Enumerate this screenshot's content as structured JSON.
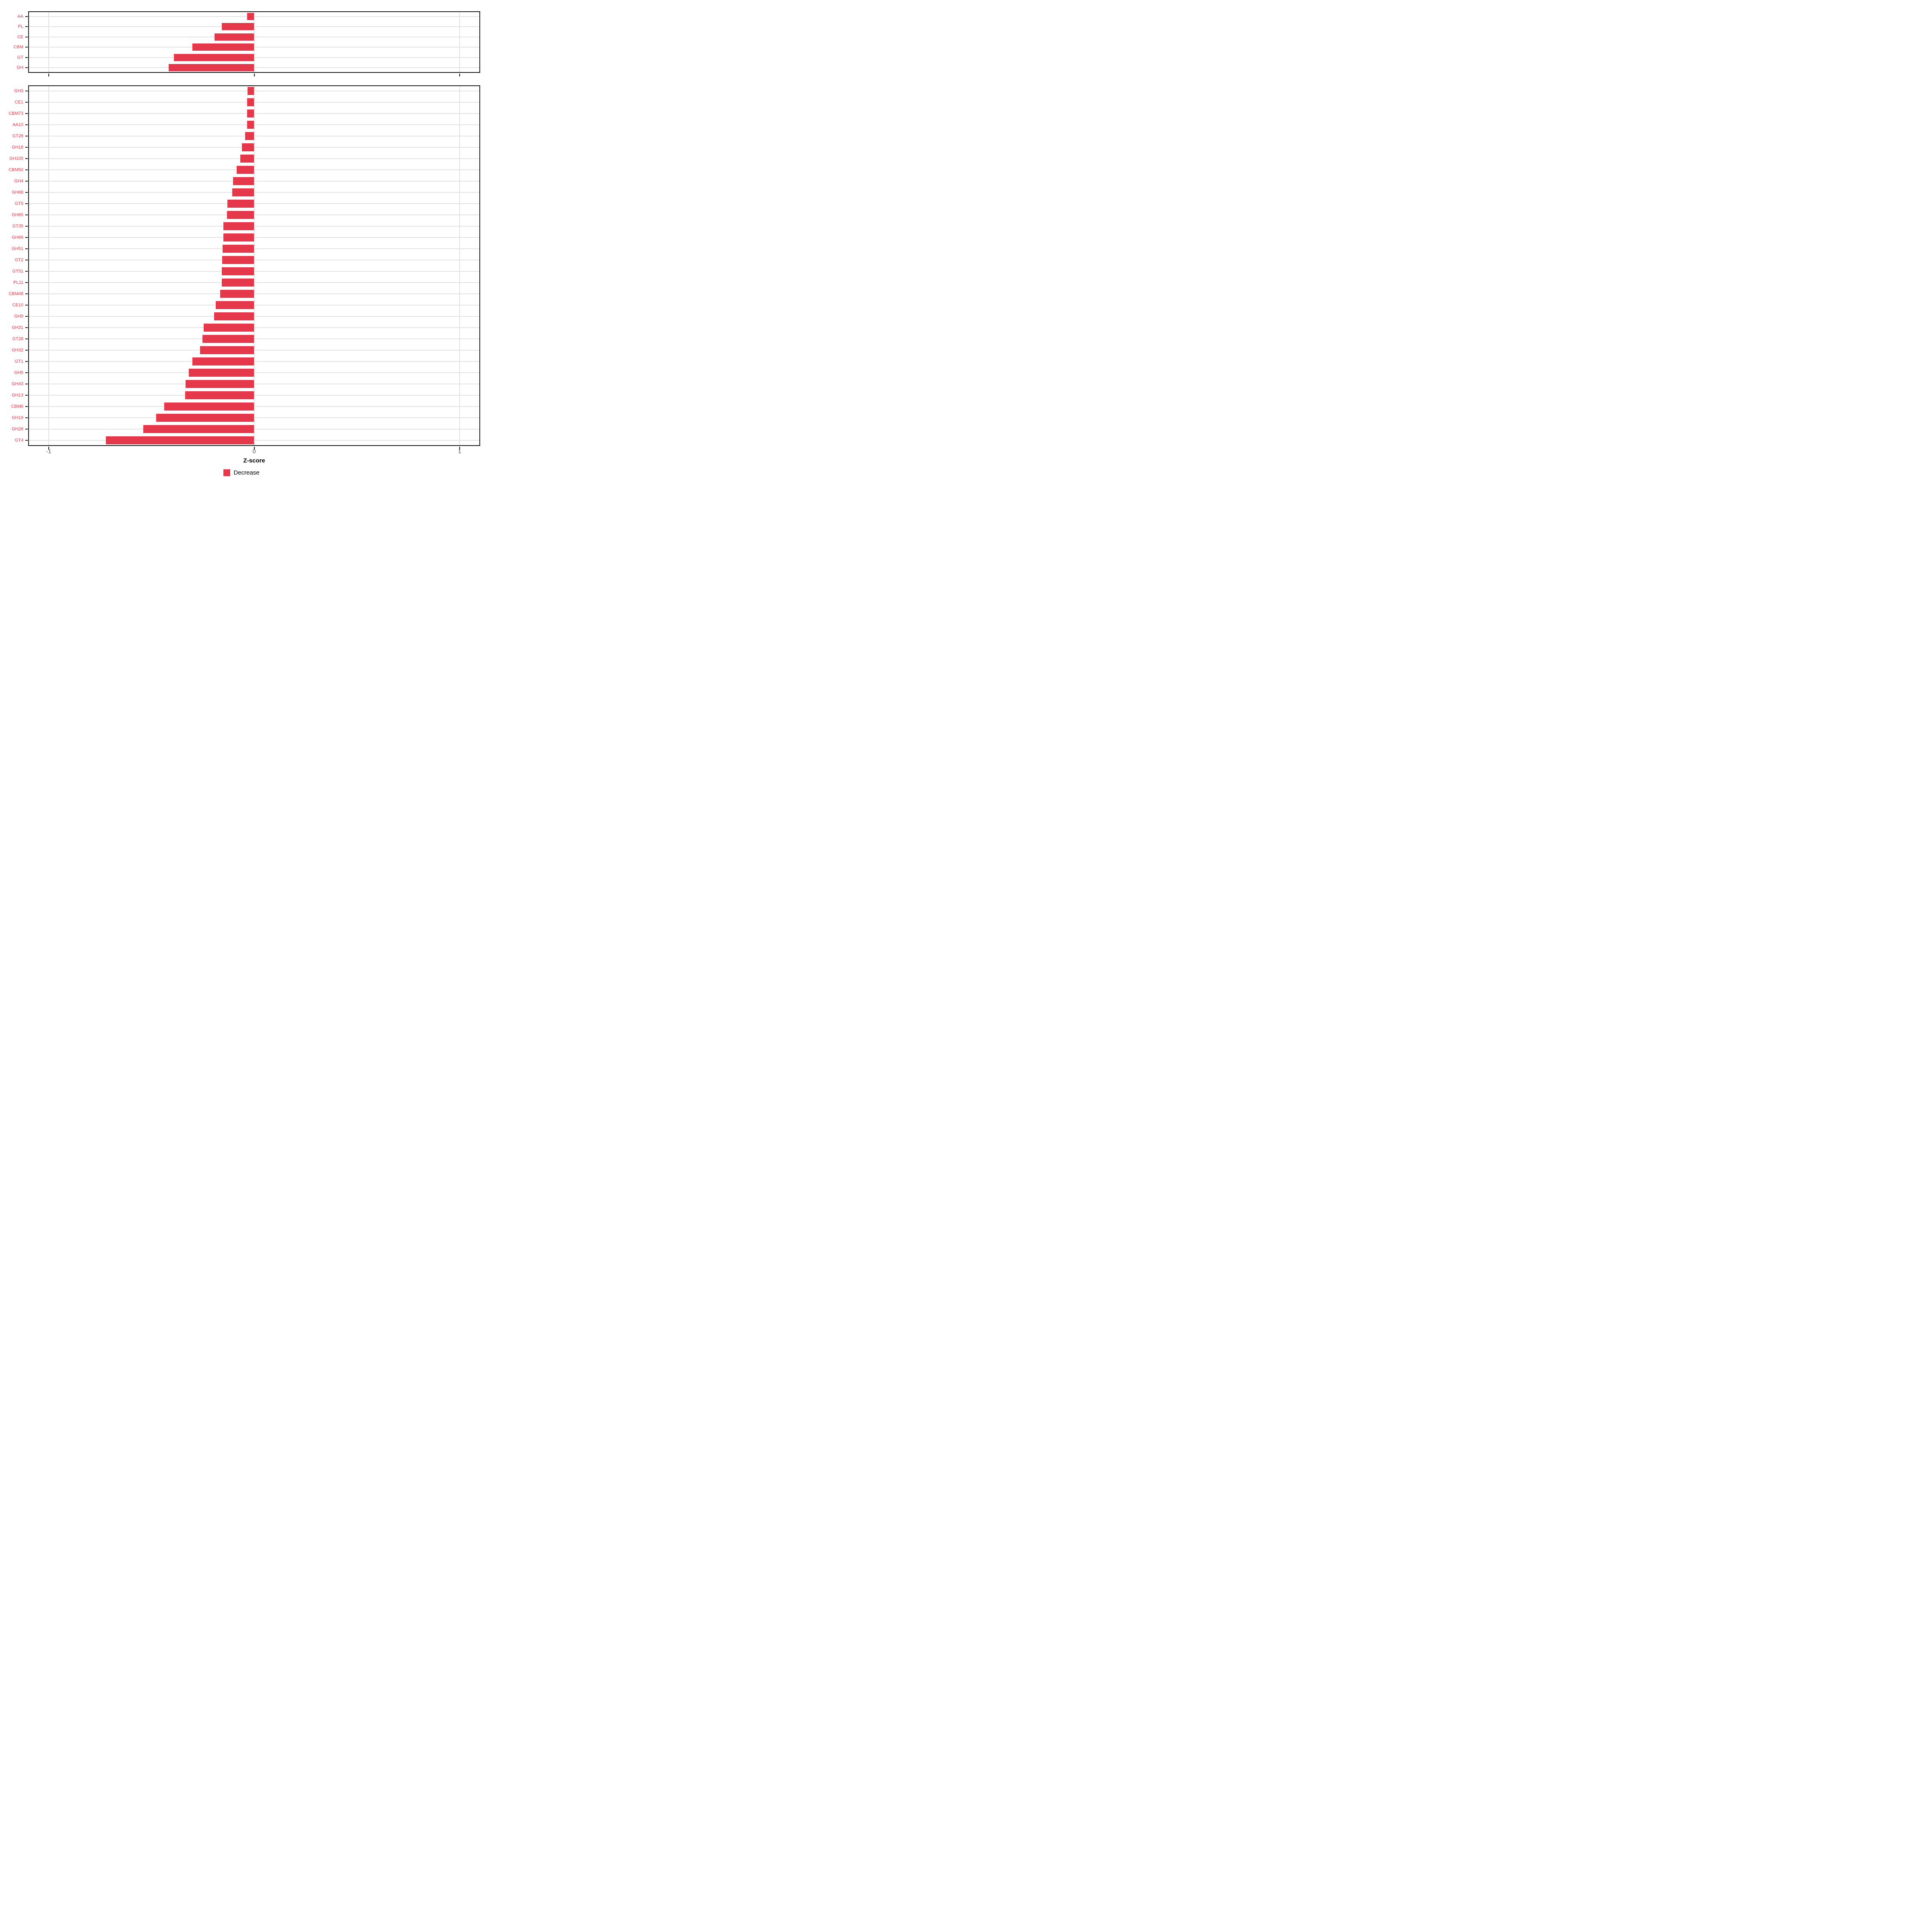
{
  "chart_data": {
    "type": "bar",
    "orientation": "horizontal",
    "title": "",
    "xlabel": "Z-score",
    "ylabel": "",
    "xlim": [
      -1.1,
      1.1
    ],
    "xticks": [
      -1,
      0,
      1
    ],
    "xtick_labels": [
      "-1",
      "0",
      "1"
    ],
    "grid": true,
    "bar_color": "#e5394b",
    "category_label_color": "#e5394b",
    "axis_text_color": "#4d4d4d",
    "gridline_color": "#e3e3e3",
    "panel_border_color": "#1a1a1a",
    "legend": {
      "position": "bottom",
      "entries": [
        {
          "label": "Decrease",
          "color": "#e5394b"
        }
      ]
    },
    "panels": [
      {
        "categories": [
          "AA",
          "PL",
          "CE",
          "CBM",
          "GT",
          "GH"
        ],
        "values": [
          -0.035,
          -0.157,
          -0.192,
          -0.301,
          -0.39,
          -0.416
        ]
      },
      {
        "categories": [
          "GH3",
          "CE1",
          "CBM73",
          "AA10",
          "GT26",
          "GH18",
          "GH105",
          "CBM50",
          "GH4",
          "GH68",
          "GT5",
          "GH65",
          "GT35",
          "GH66",
          "GH51",
          "GT2",
          "GT51",
          "PL11",
          "CBM48",
          "CE10",
          "GH9",
          "GH31",
          "GT28",
          "GH32",
          "GT1",
          "GH5",
          "GH43",
          "GH13",
          "CBM6",
          "GH19",
          "GH26",
          "GT4"
        ],
        "values": [
          -0.033,
          -0.034,
          -0.035,
          -0.035,
          -0.044,
          -0.059,
          -0.067,
          -0.085,
          -0.103,
          -0.106,
          -0.131,
          -0.132,
          -0.149,
          -0.15,
          -0.153,
          -0.156,
          -0.157,
          -0.158,
          -0.165,
          -0.188,
          -0.195,
          -0.245,
          -0.252,
          -0.263,
          -0.3,
          -0.319,
          -0.334,
          -0.335,
          -0.438,
          -0.477,
          -0.54,
          -0.722
        ]
      }
    ]
  }
}
